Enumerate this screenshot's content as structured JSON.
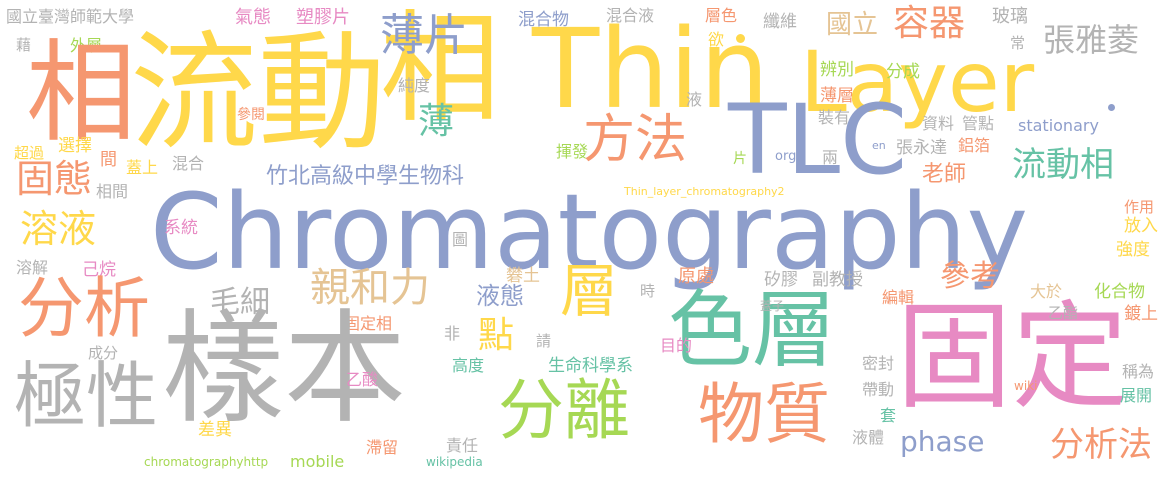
{
  "colors": {
    "yellow": "#FFD84A",
    "blue": "#8E9ECB",
    "orange": "#F59770",
    "gray": "#B3B3B3",
    "green": "#66C2A5",
    "lime": "#A6D854",
    "pink": "#E78AC3",
    "tan": "#E5C494"
  },
  "words": [
    {
      "text": "國立臺灣師範大學",
      "color": "gray",
      "name": "word-guoli-taiwan-shida"
    },
    {
      "text": "氣態",
      "color": "pink",
      "name": "word-qitai"
    },
    {
      "text": "塑膠片",
      "color": "pink",
      "name": "word-sujiaopian"
    },
    {
      "text": "混合物",
      "color": "blue",
      "name": "word-hunhewu"
    },
    {
      "text": "混合液",
      "color": "gray",
      "name": "word-hunheye"
    },
    {
      "text": "層色",
      "color": "orange",
      "name": "word-cengse"
    },
    {
      "text": "纖維",
      "color": "gray",
      "name": "word-xianwei"
    },
    {
      "text": "國立",
      "color": "tan",
      "name": "word-guoli"
    },
    {
      "text": "容器",
      "color": "orange",
      "name": "word-rongqi"
    },
    {
      "text": "玻璃",
      "color": "gray",
      "name": "word-boli"
    },
    {
      "text": "張雅菱",
      "color": "gray",
      "name": "word-zhang-yaling"
    },
    {
      "text": "常",
      "color": "gray",
      "name": "word-chang"
    },
    {
      "text": "藉",
      "color": "gray",
      "name": "word-jie"
    },
    {
      "text": "外層",
      "color": "lime",
      "name": "word-waiceng"
    },
    {
      "text": "相",
      "color": "orange",
      "name": "word-xiang"
    },
    {
      "text": "流動",
      "color": "yellow",
      "name": "word-liudong"
    },
    {
      "text": "相",
      "color": "yellow",
      "name": "word-xiang-big"
    },
    {
      "text": "Thin",
      "color": "yellow",
      "name": "word-thin"
    },
    {
      "text": "Layer",
      "color": "yellow",
      "name": "word-layer"
    },
    {
      "text": "薄片",
      "color": "blue",
      "name": "word-baopian"
    },
    {
      "text": "欲",
      "color": "yellow",
      "name": "word-yu"
    },
    {
      "text": "辨別",
      "color": "lime",
      "name": "word-bianbie"
    },
    {
      "text": "分成",
      "color": "lime",
      "name": "word-fencheng"
    },
    {
      "text": "純度",
      "color": "gray",
      "name": "word-chundu"
    },
    {
      "text": "液",
      "color": "gray",
      "name": "word-ye"
    },
    {
      "text": "薄層",
      "color": "orange",
      "name": "word-baoceng"
    },
    {
      "text": "參閱",
      "color": "orange",
      "name": "word-canyue"
    },
    {
      "text": "裝有",
      "color": "gray",
      "name": "word-zhuangyou"
    },
    {
      "text": "資料",
      "color": "gray",
      "name": "word-ziliao"
    },
    {
      "text": "管點",
      "color": "gray",
      "name": "word-guandian"
    },
    {
      "text": "stationary",
      "color": "blue",
      "name": "word-stationary"
    },
    {
      "text": "薄",
      "color": "green",
      "name": "word-bao"
    },
    {
      "text": "方法",
      "color": "orange",
      "name": "word-fangfa"
    },
    {
      "text": "TLC",
      "color": "blue",
      "name": "word-tlc"
    },
    {
      "text": "超過",
      "color": "yellow",
      "name": "word-chaoguo"
    },
    {
      "text": "選擇",
      "color": "yellow",
      "name": "word-xuanze"
    },
    {
      "text": "固態",
      "color": "orange",
      "name": "word-gutai"
    },
    {
      "text": "間",
      "color": "orange",
      "name": "word-jian"
    },
    {
      "text": "蓋上",
      "color": "yellow",
      "name": "word-gaishang"
    },
    {
      "text": "混合",
      "color": "gray",
      "name": "word-hunhe"
    },
    {
      "text": "揮發",
      "color": "lime",
      "name": "word-huifa"
    },
    {
      "text": "片",
      "color": "lime",
      "name": "word-pian"
    },
    {
      "text": "org",
      "color": "blue",
      "name": "word-org"
    },
    {
      "text": "兩",
      "color": "gray",
      "name": "word-liang"
    },
    {
      "text": "en",
      "color": "blue",
      "name": "word-en"
    },
    {
      "text": "張永達",
      "color": "gray",
      "name": "word-zhang-yongda"
    },
    {
      "text": "鋁箔",
      "color": "orange",
      "name": "word-lvbo"
    },
    {
      "text": "相間",
      "color": "gray",
      "name": "word-xiangjian"
    },
    {
      "text": "竹北高級中學生物科",
      "color": "blue",
      "name": "word-zhubei-school"
    },
    {
      "text": "Thin_layer_chromatography2",
      "color": "yellow",
      "name": "word-thin-layer-file"
    },
    {
      "text": "老師",
      "color": "orange",
      "name": "word-laoshi"
    },
    {
      "text": "流動相",
      "color": "green",
      "name": "word-liudongxiang"
    },
    {
      "text": "Chromatography",
      "color": "blue",
      "name": "word-chromatography"
    },
    {
      "text": "溶液",
      "color": "yellow",
      "name": "word-rongye"
    },
    {
      "text": "系統",
      "color": "pink",
      "name": "word-xitong"
    },
    {
      "text": "圖",
      "color": "gray",
      "name": "word-tu"
    },
    {
      "text": "作用",
      "color": "orange",
      "name": "word-zuoyong"
    },
    {
      "text": "放入",
      "color": "yellow",
      "name": "word-fangru"
    },
    {
      "text": "溶解",
      "color": "gray",
      "name": "word-rongjie"
    },
    {
      "text": "己烷",
      "color": "pink",
      "name": "word-jiwan"
    },
    {
      "text": "分析",
      "color": "orange",
      "name": "word-fenxi"
    },
    {
      "text": "毛細",
      "color": "gray",
      "name": "word-maoxi"
    },
    {
      "text": "親和力",
      "color": "tan",
      "name": "word-qinheli"
    },
    {
      "text": "層",
      "color": "yellow",
      "name": "word-ceng"
    },
    {
      "text": "時",
      "color": "gray",
      "name": "word-shi"
    },
    {
      "text": "矽膠",
      "color": "gray",
      "name": "word-guijiao"
    },
    {
      "text": "副教授",
      "color": "gray",
      "name": "word-fujiaoshou"
    },
    {
      "text": "參考",
      "color": "orange",
      "name": "word-cankao"
    },
    {
      "text": "強度",
      "color": "yellow",
      "name": "word-qiangdu"
    },
    {
      "text": "液態",
      "color": "blue",
      "name": "word-yetai"
    },
    {
      "text": "礬土",
      "color": "tan",
      "name": "word-fantu"
    },
    {
      "text": "原處",
      "color": "orange",
      "name": "word-yuanchu"
    },
    {
      "text": "編輯",
      "color": "orange",
      "name": "word-bianji"
    },
    {
      "text": "大於",
      "color": "tan",
      "name": "word-dayu"
    },
    {
      "text": "化合物",
      "color": "lime",
      "name": "word-huahewu"
    },
    {
      "text": "色層",
      "color": "green",
      "name": "word-seceng"
    },
    {
      "text": "蓋子",
      "color": "gray",
      "name": "word-gaizi"
    },
    {
      "text": "固定",
      "color": "pink",
      "name": "word-guding"
    },
    {
      "text": "乙酯",
      "color": "gray",
      "name": "word-yizhi"
    },
    {
      "text": "鍍上",
      "color": "orange",
      "name": "word-dushang"
    },
    {
      "text": "非",
      "color": "gray",
      "name": "word-fei"
    },
    {
      "text": "固定相",
      "color": "orange",
      "name": "word-gudingxiang"
    },
    {
      "text": "目的",
      "color": "pink",
      "name": "word-mudi"
    },
    {
      "text": "成分",
      "color": "gray",
      "name": "word-chengfen"
    },
    {
      "text": "點",
      "color": "yellow",
      "name": "word-dian"
    },
    {
      "text": "請",
      "color": "gray",
      "name": "word-qing"
    },
    {
      "text": "極性",
      "color": "gray",
      "name": "word-jixing"
    },
    {
      "text": "樣本",
      "color": "gray",
      "name": "word-yangben"
    },
    {
      "text": "乙酸",
      "color": "pink",
      "name": "word-yisuan"
    },
    {
      "text": "高度",
      "color": "green",
      "name": "word-gaodu"
    },
    {
      "text": "生命科學系",
      "color": "green",
      "name": "word-shengming-kexue"
    },
    {
      "text": "密封",
      "color": "gray",
      "name": "word-mifeng"
    },
    {
      "text": "帶動",
      "color": "gray",
      "name": "word-daidong"
    },
    {
      "text": "稱為",
      "color": "gray",
      "name": "word-chengwei"
    },
    {
      "text": "分離",
      "color": "lime",
      "name": "word-fenli"
    },
    {
      "text": "物質",
      "color": "orange",
      "name": "word-wuzhi"
    },
    {
      "text": "wiki",
      "color": "orange",
      "name": "word-wiki"
    },
    {
      "text": "展開",
      "color": "green",
      "name": "word-zhankai"
    },
    {
      "text": "差異",
      "color": "yellow",
      "name": "word-chayi"
    },
    {
      "text": "phase",
      "color": "blue",
      "name": "word-phase"
    },
    {
      "text": "套",
      "color": "green",
      "name": "word-tao"
    },
    {
      "text": "分析法",
      "color": "orange",
      "name": "word-fenxifa"
    },
    {
      "text": "滯留",
      "color": "orange",
      "name": "word-zhiliu"
    },
    {
      "text": "責任",
      "color": "gray",
      "name": "word-zeren"
    },
    {
      "text": "液體",
      "color": "gray",
      "name": "word-yeti"
    },
    {
      "text": "chromatographyhttp",
      "color": "lime",
      "name": "word-chromatographyhttp"
    },
    {
      "text": "mobile",
      "color": "lime",
      "name": "word-mobile"
    },
    {
      "text": "wikipedia",
      "color": "green",
      "name": "word-wikipedia"
    }
  ]
}
